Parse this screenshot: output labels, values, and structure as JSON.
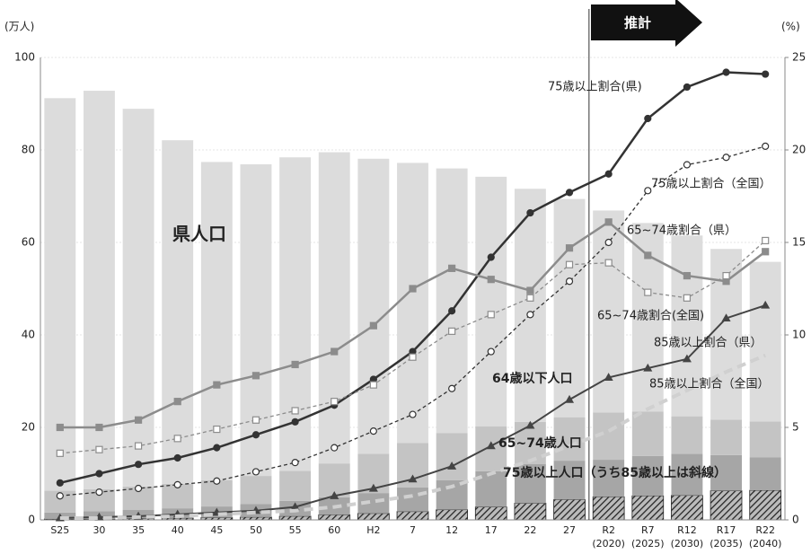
{
  "chart_data": {
    "type": "bar",
    "y_label": "(万人)",
    "y2_label": "(%)",
    "projection_label": "推計",
    "categories": [
      "S25",
      "30",
      "35",
      "40",
      "45",
      "50",
      "55",
      "60",
      "H2",
      "7",
      "12",
      "17",
      "22",
      "27",
      "R2",
      "R7",
      "R12",
      "R17",
      "R22"
    ],
    "category_years": [
      null,
      null,
      null,
      null,
      null,
      null,
      null,
      null,
      null,
      null,
      null,
      null,
      null,
      null,
      "(2020)",
      "(2025)",
      "(2030)",
      "(2035)",
      "(2040)"
    ],
    "ylim": [
      0,
      100
    ],
    "yticks": [
      0,
      20,
      40,
      60,
      80,
      100
    ],
    "y2lim": [
      0,
      25
    ],
    "y2ticks": [
      0,
      5,
      10,
      15,
      20,
      25
    ],
    "bar_series": [
      {
        "color": "#7a7a7a",
        "hatch": true,
        "values": [
          0.2,
          0.2,
          0.3,
          0.4,
          0.5,
          0.6,
          0.8,
          1.1,
          1.4,
          1.8,
          2.2,
          2.8,
          3.6,
          4.4,
          5.0,
          5.2,
          5.3,
          6.3,
          6.4
        ]
      },
      {
        "color": "#a6a6a6",
        "values": [
          1.4,
          1.7,
          1.9,
          2.1,
          2.4,
          2.8,
          3.3,
          3.8,
          4.4,
          5.2,
          6.4,
          7.7,
          8.5,
          8.4,
          8.0,
          8.6,
          9.0,
          7.7,
          7.1
        ]
      },
      {
        "color": "#c4c4c4",
        "values": [
          4.7,
          4.7,
          5.0,
          5.3,
          5.7,
          6.1,
          6.5,
          7.3,
          8.5,
          9.6,
          10.2,
          9.7,
          9.1,
          9.4,
          10.2,
          9.6,
          8.1,
          7.7,
          7.8
        ]
      },
      {
        "color": "#dcdcdc",
        "values": [
          84.9,
          86.2,
          81.7,
          74.3,
          68.8,
          67.4,
          67.8,
          67.3,
          63.8,
          60.6,
          57.2,
          54.0,
          50.4,
          47.2,
          43.7,
          40.8,
          39.1,
          36.9,
          34.5
        ]
      }
    ],
    "line_series": [
      {
        "axis": "y2",
        "color": "#333333",
        "marker": "circle",
        "filled": true,
        "dashed": false,
        "width": 2.5,
        "values": [
          2.0,
          2.5,
          3.0,
          3.35,
          3.9,
          4.6,
          5.3,
          6.2,
          7.6,
          9.1,
          11.3,
          14.2,
          16.6,
          17.7,
          18.7,
          21.7,
          23.4,
          24.2,
          24.1
        ]
      },
      {
        "axis": "y2",
        "color": "#333333",
        "marker": "circle",
        "filled": false,
        "dashed": true,
        "width": 1.3,
        "values": [
          1.3,
          1.5,
          1.7,
          1.9,
          2.1,
          2.6,
          3.1,
          3.9,
          4.8,
          5.7,
          7.1,
          9.1,
          11.1,
          12.9,
          15.0,
          17.8,
          19.2,
          19.6,
          20.2
        ]
      },
      {
        "axis": "y2",
        "color": "#8c8c8c",
        "marker": "square",
        "filled": true,
        "dashed": false,
        "width": 2.5,
        "values": [
          5.0,
          5.0,
          5.4,
          6.4,
          7.3,
          7.8,
          8.4,
          9.1,
          10.5,
          12.5,
          13.6,
          13.0,
          12.4,
          14.7,
          16.1,
          14.3,
          13.2,
          12.9,
          14.5
        ]
      },
      {
        "axis": "y2",
        "color": "#8c8c8c",
        "marker": "square",
        "filled": false,
        "dashed": true,
        "width": 1.3,
        "values": [
          3.6,
          3.8,
          4.0,
          4.4,
          4.9,
          5.4,
          5.9,
          6.4,
          7.3,
          8.8,
          10.2,
          11.1,
          12.0,
          13.8,
          13.9,
          12.3,
          12.0,
          13.2,
          15.1
        ]
      },
      {
        "axis": "y2",
        "color": "#444444",
        "marker": "triangle",
        "filled": true,
        "dashed": false,
        "width": 2,
        "values": [
          0.1,
          0.15,
          0.2,
          0.3,
          0.4,
          0.5,
          0.7,
          1.3,
          1.7,
          2.2,
          2.9,
          4.0,
          5.1,
          6.5,
          7.7,
          8.2,
          8.7,
          10.9,
          11.6
        ]
      },
      {
        "axis": "y2",
        "color": "#d0d0d0",
        "marker": null,
        "filled": false,
        "dashed": true,
        "width": 4,
        "values": [
          0.1,
          0.1,
          0.15,
          0.2,
          0.3,
          0.4,
          0.5,
          0.7,
          1.0,
          1.3,
          1.8,
          2.5,
          3.2,
          4.0,
          4.8,
          6.0,
          7.0,
          8.0,
          8.9
        ]
      }
    ],
    "annotations": [
      "75歳以上割合(県)",
      "75歳以上割合（全国）",
      "65~74歳割合（県）",
      "65~74歳割合(全国)",
      "85歳以上割合（県）",
      "85歳以上割合（全国）",
      "県人口",
      "64歳以下人口",
      "65~74歳人口",
      "75歳以上人口（うち85歳以上は斜線）"
    ]
  }
}
